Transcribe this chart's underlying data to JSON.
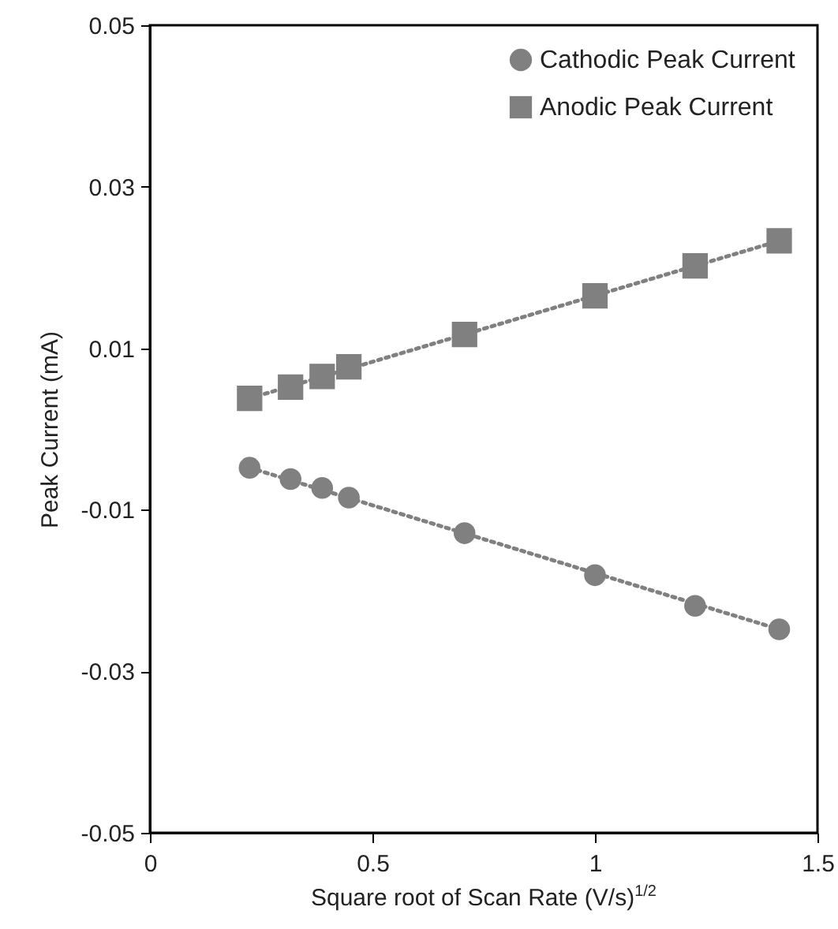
{
  "chart_data": {
    "type": "scatter",
    "xlabel": "Square root of Scan Rate (V/s)$^{1/2}$",
    "ylabel": "Peak Current (mA)",
    "xlim": [
      0,
      1.5
    ],
    "xticks": [
      0,
      0.5,
      1,
      1.5
    ],
    "ylim": [
      -0.05,
      0.05
    ],
    "yticks": [
      -0.05,
      -0.03,
      -0.01,
      0.01,
      0.03,
      0.05
    ],
    "legend": "top right",
    "grid": false,
    "series": [
      {
        "name": "Cathodic Peak Current",
        "type": "scatter",
        "marker": "circle",
        "color": "#808080",
        "x": [
          0.224,
          0.316,
          0.387,
          0.447,
          0.707,
          1.0,
          1.225,
          1.414
        ],
        "values": [
          -0.0048,
          -0.0062,
          -0.0073,
          -0.0085,
          -0.0129,
          -0.0181,
          -0.0219,
          -0.0248
        ]
      },
      {
        "name": "Anodic Peak Current",
        "type": "scatter",
        "marker": "square",
        "color": "#808080",
        "x": [
          0.224,
          0.316,
          0.387,
          0.447,
          0.707,
          1.0,
          1.225,
          1.414
        ],
        "values": [
          0.0038,
          0.0052,
          0.0065,
          0.0077,
          0.0117,
          0.0165,
          0.0202,
          0.0233
        ]
      },
      {
        "type": "line",
        "line_style": "dotted",
        "color": "#808080",
        "x": [
          0.224,
          1.414
        ],
        "values": [
          -0.0048,
          -0.0248
        ]
      },
      {
        "type": "line",
        "line_style": "dotted",
        "color": "#808080",
        "x": [
          0.224,
          1.414
        ],
        "values": [
          0.0038,
          0.0233
        ]
      }
    ]
  }
}
